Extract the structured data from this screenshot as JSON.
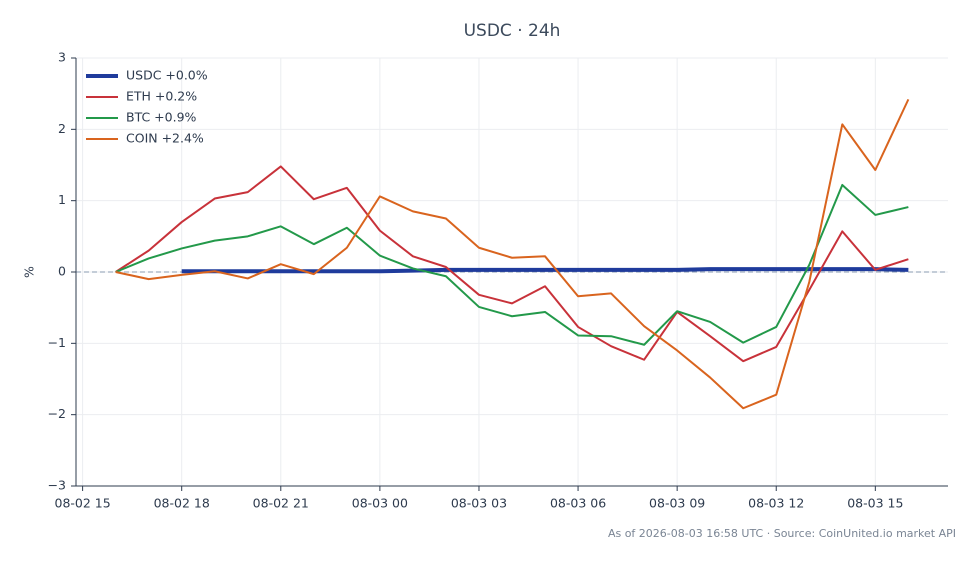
{
  "chart_data": {
    "type": "line",
    "title": "USDC · 24h",
    "ylabel": "%",
    "footer": "As of 2026-08-03 16:58 UTC · Source: CoinUnited.io market API",
    "x": [
      "08-02 16",
      "08-02 17",
      "08-02 18",
      "08-02 19",
      "08-02 20",
      "08-02 21",
      "08-02 22",
      "08-02 23",
      "08-03 00",
      "08-03 01",
      "08-03 02",
      "08-03 03",
      "08-03 04",
      "08-03 05",
      "08-03 06",
      "08-03 07",
      "08-03 08",
      "08-03 09",
      "08-03 10",
      "08-03 11",
      "08-03 12",
      "08-03 13",
      "08-03 14",
      "08-03 15",
      "08-03 16"
    ],
    "series": [
      {
        "name": "USDC +0.0%",
        "color": "#1f3b9c",
        "width": 4,
        "values": [
          null,
          null,
          0.01,
          0.01,
          0.01,
          0.01,
          0.01,
          0.01,
          0.01,
          0.02,
          0.03,
          0.03,
          0.03,
          0.03,
          0.03,
          0.03,
          0.03,
          0.03,
          0.04,
          0.04,
          0.04,
          0.04,
          0.04,
          0.04,
          0.03
        ]
      },
      {
        "name": "ETH +0.2%",
        "color": "#c8323a",
        "width": 2,
        "values": [
          0,
          0.3,
          0.7,
          1.03,
          1.12,
          1.48,
          1.02,
          1.18,
          0.58,
          0.22,
          0.07,
          -0.32,
          -0.44,
          -0.2,
          -0.77,
          -1.04,
          -1.23,
          -0.56,
          -0.9,
          -1.25,
          -1.05,
          -0.25,
          0.57,
          0.03,
          0.18
        ]
      },
      {
        "name": "BTC +0.9%",
        "color": "#23994a",
        "width": 2,
        "values": [
          0,
          0.19,
          0.33,
          0.44,
          0.5,
          0.64,
          0.39,
          0.62,
          0.23,
          0.05,
          -0.06,
          -0.49,
          -0.62,
          -0.56,
          -0.89,
          -0.9,
          -1.02,
          -0.55,
          -0.7,
          -0.99,
          -0.77,
          0.1,
          1.22,
          0.8,
          0.91
        ]
      },
      {
        "name": "COIN +2.4%",
        "color": "#d9641e",
        "width": 2,
        "values": [
          0,
          -0.1,
          -0.04,
          0.01,
          -0.09,
          0.11,
          -0.03,
          0.34,
          1.06,
          0.85,
          0.75,
          0.34,
          0.2,
          0.22,
          -0.34,
          -0.3,
          -0.76,
          -1.1,
          -1.48,
          -1.91,
          -1.72,
          -0.14,
          2.07,
          1.43,
          2.42
        ]
      }
    ],
    "xlim": [
      "08-02 14:48",
      "08-03 17:12"
    ],
    "xticks": [
      "08-02 15",
      "08-02 18",
      "08-02 21",
      "08-03 00",
      "08-03 03",
      "08-03 06",
      "08-03 09",
      "08-03 12",
      "08-03 15"
    ],
    "ylim": [
      -3,
      3
    ],
    "yticks": [
      {
        "value": -3,
        "label": "−3"
      },
      {
        "value": -2,
        "label": "−2"
      },
      {
        "value": -1,
        "label": "−1"
      },
      0,
      1,
      2,
      3
    ],
    "reference_line": 0,
    "grid": true,
    "legend": "upper left"
  }
}
